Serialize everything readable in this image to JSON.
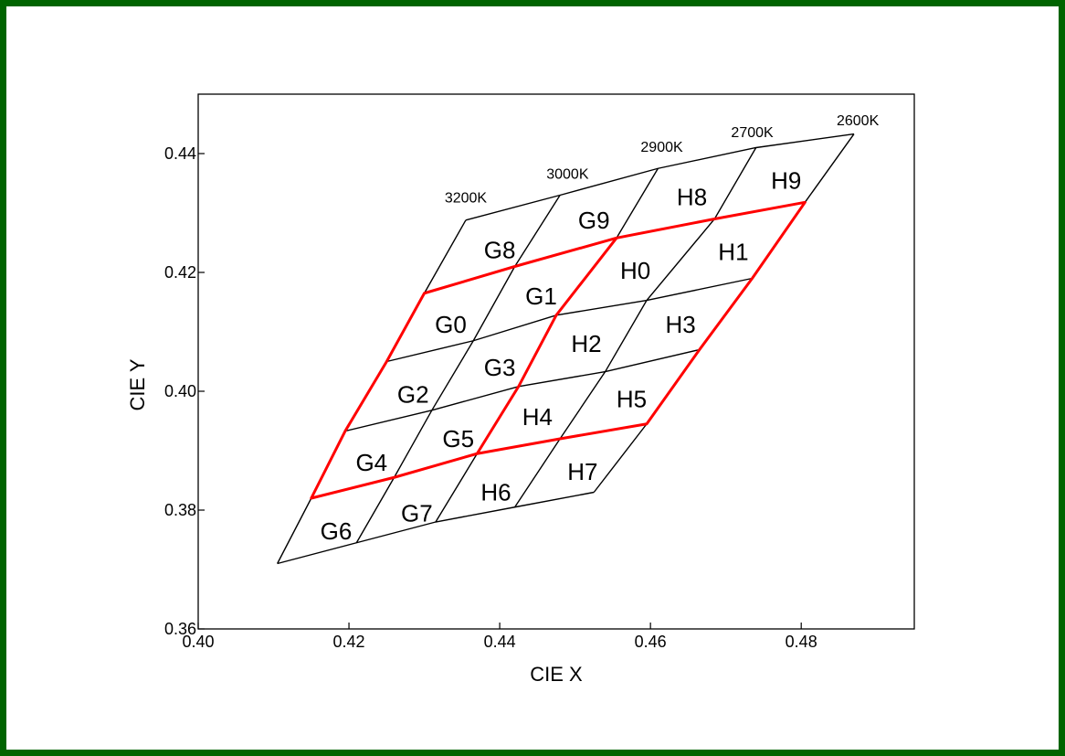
{
  "colors": {
    "border": "#006400",
    "grid_line": "#000000",
    "highlight": "#ff0000",
    "background": "#ffffff"
  },
  "chart_data": {
    "type": "diagram",
    "xlabel": "CIE X",
    "ylabel": "CIE Y",
    "xlim": [
      0.4,
      0.495
    ],
    "ylim": [
      0.36,
      0.45
    ],
    "xticks": [
      "0.40",
      "0.42",
      "0.44",
      "0.46",
      "0.48"
    ],
    "xtick_values": [
      0.4,
      0.42,
      0.44,
      0.46,
      0.48
    ],
    "yticks": [
      "0.36",
      "0.38",
      "0.40",
      "0.42",
      "0.44"
    ],
    "ytick_values": [
      0.36,
      0.38,
      0.4,
      0.42,
      0.44
    ],
    "grid_nodes": [
      [
        [
          0.4105,
          0.371
        ],
        [
          0.421,
          0.3745
        ],
        [
          0.4315,
          0.378
        ],
        [
          0.442,
          0.3805
        ],
        [
          0.4525,
          0.383
        ]
      ],
      [
        [
          0.415,
          0.382
        ],
        [
          0.426,
          0.3855
        ],
        [
          0.437,
          0.3895
        ],
        [
          0.448,
          0.392
        ],
        [
          0.4595,
          0.3945
        ]
      ],
      [
        [
          0.4195,
          0.3933
        ],
        [
          0.431,
          0.3968
        ],
        [
          0.4425,
          0.4008
        ],
        [
          0.454,
          0.4033
        ],
        [
          0.4665,
          0.407
        ]
      ],
      [
        [
          0.425,
          0.405
        ],
        [
          0.4365,
          0.4085
        ],
        [
          0.4475,
          0.4128
        ],
        [
          0.4595,
          0.4153
        ],
        [
          0.4735,
          0.419
        ]
      ],
      [
        [
          0.43,
          0.4165
        ],
        [
          0.442,
          0.421
        ],
        [
          0.4555,
          0.4258
        ],
        [
          0.4685,
          0.429
        ],
        [
          0.4805,
          0.4318
        ]
      ],
      [
        [
          0.4355,
          0.4288
        ],
        [
          0.448,
          0.433
        ],
        [
          0.461,
          0.4375
        ],
        [
          0.474,
          0.441
        ],
        [
          0.487,
          0.4433
        ]
      ]
    ],
    "temperature_labels": [
      {
        "text": "3200K",
        "x": 0.4355,
        "y": 0.4318
      },
      {
        "text": "3000K",
        "x": 0.449,
        "y": 0.4358
      },
      {
        "text": "2900K",
        "x": 0.4615,
        "y": 0.4403
      },
      {
        "text": "2700K",
        "x": 0.4735,
        "y": 0.4428
      },
      {
        "text": "2600K",
        "x": 0.4875,
        "y": 0.4448
      }
    ],
    "bins": [
      {
        "text": "G6",
        "x": 0.4183,
        "y": 0.3765
      },
      {
        "text": "G7",
        "x": 0.429,
        "y": 0.3795
      },
      {
        "text": "H6",
        "x": 0.4395,
        "y": 0.383
      },
      {
        "text": "H7",
        "x": 0.451,
        "y": 0.3865
      },
      {
        "text": "G4",
        "x": 0.423,
        "y": 0.388
      },
      {
        "text": "G5",
        "x": 0.4345,
        "y": 0.392
      },
      {
        "text": "H4",
        "x": 0.445,
        "y": 0.3957
      },
      {
        "text": "H5",
        "x": 0.4575,
        "y": 0.3987
      },
      {
        "text": "G2",
        "x": 0.4285,
        "y": 0.3995
      },
      {
        "text": "G3",
        "x": 0.44,
        "y": 0.404
      },
      {
        "text": "H2",
        "x": 0.4515,
        "y": 0.408
      },
      {
        "text": "H3",
        "x": 0.464,
        "y": 0.4112
      },
      {
        "text": "G0",
        "x": 0.4335,
        "y": 0.4112
      },
      {
        "text": "G1",
        "x": 0.4455,
        "y": 0.416
      },
      {
        "text": "H0",
        "x": 0.458,
        "y": 0.4203
      },
      {
        "text": "H1",
        "x": 0.471,
        "y": 0.4235
      },
      {
        "text": "G8",
        "x": 0.44,
        "y": 0.4238
      },
      {
        "text": "G9",
        "x": 0.4525,
        "y": 0.4288
      },
      {
        "text": "H8",
        "x": 0.4655,
        "y": 0.4327
      },
      {
        "text": "H9",
        "x": 0.478,
        "y": 0.4355
      }
    ],
    "highlight_region": [
      [
        1,
        0
      ],
      [
        4,
        0
      ],
      [
        4,
        4
      ],
      [
        1,
        4
      ]
    ],
    "highlight_divider": [
      [
        1,
        2
      ],
      [
        4,
        2
      ]
    ]
  }
}
